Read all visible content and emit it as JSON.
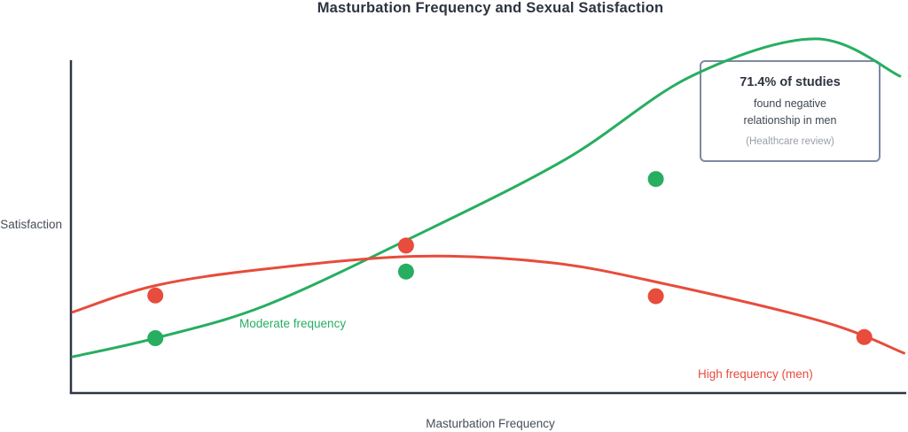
{
  "title": "Masturbation Frequency and Sexual Satisfaction",
  "x_axis_label": "Masturbation Frequency",
  "y_axis_label": "Satisfaction",
  "labels": {
    "moderate": "Moderate frequency",
    "high": "High frequency (men)"
  },
  "annotation_box": {
    "headline": "71.4% of studies",
    "body_line1": "found negative",
    "body_line2": "relationship in men",
    "source": "(Healthcare review)"
  },
  "colors": {
    "moderate_green": "#27ae60",
    "high_red": "#e74c3c",
    "axis": "#2f3542",
    "title_text": "#2d3440",
    "axis_label_text": "#474e58",
    "box_border": "#7d89a3",
    "box_body_text": "#3f4650",
    "box_source_text": "#9aa0a6"
  },
  "chart_data": {
    "type": "line",
    "subtype": "smooth conceptual curves with scatter points",
    "title": "Masturbation Frequency and Sexual Satisfaction",
    "xlabel": "Masturbation Frequency",
    "ylabel": "Satisfaction",
    "grid": false,
    "legend": "inline colored labels next to curves",
    "axes_note": "conceptual axes with no tick marks or numeric labels; coordinates below are normalized 0-1 estimates of the drawn geometry (x = fraction of x-axis length, y = fraction of y-axis height above the x-axis)",
    "x_range": [
      0,
      1
    ],
    "y_range": [
      0,
      1
    ],
    "annotation": "71.4% of studies found negative relationship in men (Healthcare review)",
    "series": [
      {
        "name": "Moderate frequency",
        "color": "#27ae60",
        "shape": "rising S-curve that peaks near the right edge then dips slightly",
        "curve_points": [
          [
            0.002,
            0.109
          ],
          [
            0.102,
            0.165
          ],
          [
            0.233,
            0.261
          ],
          [
            0.407,
            0.461
          ],
          [
            0.597,
            0.701
          ],
          [
            0.75,
            0.952
          ],
          [
            0.9,
            1.064
          ],
          [
            1.002,
            0.952
          ]
        ],
        "scatter_points": [
          [
            0.102,
            0.165
          ],
          [
            0.405,
            0.365
          ],
          [
            0.707,
            0.643
          ]
        ]
      },
      {
        "name": "High frequency (men)",
        "color": "#e74c3c",
        "shape": "shallow inverted-U peaking left of center then declining to the right",
        "curve_points": [
          [
            0.002,
            0.243
          ],
          [
            0.102,
            0.323
          ],
          [
            0.236,
            0.373
          ],
          [
            0.418,
            0.411
          ],
          [
            0.579,
            0.392
          ],
          [
            0.718,
            0.328
          ],
          [
            0.911,
            0.213
          ],
          [
            1.007,
            0.12
          ]
        ],
        "scatter_points": [
          [
            0.102,
            0.293
          ],
          [
            0.405,
            0.443
          ],
          [
            0.707,
            0.291
          ],
          [
            0.959,
            0.168
          ]
        ]
      }
    ],
    "point_radius_px": 9
  }
}
